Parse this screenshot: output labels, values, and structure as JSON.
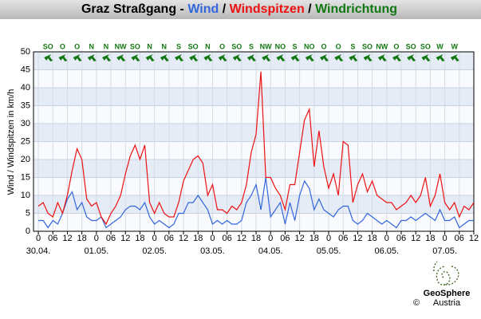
{
  "chart_data": {
    "type": "line",
    "title": "Graz Straßgang -",
    "separator": "/",
    "ylabel": "Wind / Windspitzen in km/h",
    "xlim": [
      -2,
      180
    ],
    "ylim": [
      0,
      50
    ],
    "yticks": [
      0,
      5,
      10,
      15,
      20,
      25,
      30,
      35,
      40,
      45,
      50
    ],
    "xticks": [
      0,
      {
        "value": 6,
        "label": "06"
      },
      12,
      18,
      {
        "value": 24,
        "label": "0"
      },
      {
        "value": 30,
        "label": "06"
      },
      {
        "value": 36,
        "label": "12"
      },
      {
        "value": 42,
        "label": "18"
      },
      {
        "value": 48,
        "label": "0"
      },
      {
        "value": 54,
        "label": "06"
      },
      {
        "value": 60,
        "label": "12"
      },
      {
        "value": 66,
        "label": "18"
      },
      {
        "value": 72,
        "label": "0"
      },
      {
        "value": 78,
        "label": "06"
      },
      {
        "value": 84,
        "label": "12"
      },
      {
        "value": 90,
        "label": "18"
      },
      {
        "value": 96,
        "label": "0"
      },
      {
        "value": 102,
        "label": "06"
      },
      {
        "value": 108,
        "label": "12"
      },
      {
        "value": 114,
        "label": "18"
      },
      {
        "value": 120,
        "label": "0"
      },
      {
        "value": 126,
        "label": "06"
      },
      {
        "value": 132,
        "label": "12"
      },
      {
        "value": 138,
        "label": "18"
      },
      {
        "value": 144,
        "label": "0"
      },
      {
        "value": 150,
        "label": "06"
      },
      {
        "value": 156,
        "label": "12"
      },
      {
        "value": 162,
        "label": "18"
      },
      {
        "value": 168,
        "label": "0"
      },
      {
        "value": 174,
        "label": "06"
      },
      {
        "value": 180,
        "label": "12"
      }
    ],
    "date_labels": [
      {
        "value": 0,
        "label": "30.04."
      },
      {
        "value": 24,
        "label": "01.05."
      },
      {
        "value": 48,
        "label": "02.05."
      },
      {
        "value": 72,
        "label": "03.05."
      },
      {
        "value": 96,
        "label": "04.05."
      },
      {
        "value": 120,
        "label": "05.05."
      },
      {
        "value": 144,
        "label": "06.05."
      },
      {
        "value": 168,
        "label": "07.05."
      }
    ],
    "grid": true,
    "x": [
      0,
      2,
      4,
      6,
      8,
      10,
      12,
      14,
      16,
      18,
      20,
      22,
      24,
      26,
      28,
      30,
      32,
      34,
      36,
      38,
      40,
      42,
      44,
      46,
      48,
      50,
      52,
      54,
      56,
      58,
      60,
      62,
      64,
      66,
      68,
      70,
      72,
      74,
      76,
      78,
      80,
      82,
      84,
      86,
      88,
      90,
      92,
      94,
      96,
      98,
      100,
      102,
      104,
      106,
      108,
      110,
      112,
      114,
      116,
      118,
      120,
      122,
      124,
      126,
      128,
      130,
      132,
      134,
      136,
      138,
      140,
      142,
      144,
      146,
      148,
      150,
      152,
      154,
      156,
      158,
      160,
      162,
      164,
      166,
      168,
      170,
      172,
      174,
      176,
      178,
      180
    ],
    "series": [
      {
        "name": "Wind",
        "color": "#3366dd",
        "values": [
          3,
          3,
          1,
          3,
          2,
          5,
          9,
          11,
          6,
          8,
          4,
          3,
          3,
          4,
          1,
          2,
          3,
          4,
          6,
          7,
          7,
          6,
          8,
          4,
          2,
          3,
          2,
          1,
          2,
          5,
          5,
          8,
          8,
          10,
          8,
          6,
          2,
          3,
          2,
          3,
          2,
          2,
          3,
          8,
          10,
          13,
          6,
          15,
          4,
          6,
          8,
          2,
          8,
          3,
          10,
          14,
          12,
          6,
          9,
          6,
          5,
          4,
          6,
          7,
          7,
          3,
          2,
          3,
          5,
          4,
          3,
          2,
          3,
          2,
          1,
          3,
          3,
          4,
          3,
          4,
          5,
          4,
          3,
          6,
          3,
          3,
          4,
          1,
          2,
          3,
          3
        ]
      },
      {
        "name": "Windspitzen",
        "color": "#ee1111",
        "values": [
          7,
          8,
          5,
          4,
          8,
          5,
          10,
          17,
          23,
          20,
          9,
          7,
          8,
          4,
          2,
          5,
          7,
          10,
          16,
          21,
          24,
          20,
          24,
          8,
          5,
          8,
          5,
          4,
          4,
          8,
          14,
          17,
          20,
          21,
          19,
          10,
          13,
          6,
          6,
          5,
          7,
          6,
          8,
          13,
          22,
          27,
          44.5,
          15,
          15,
          12,
          10,
          6,
          13,
          13,
          22,
          31,
          34,
          18,
          28,
          18,
          12,
          16,
          10,
          25,
          24,
          8,
          13,
          16,
          11,
          14,
          10,
          9,
          8,
          8,
          6,
          7,
          8,
          10,
          8,
          10,
          15,
          7,
          10,
          16,
          8,
          6,
          8,
          4,
          7,
          6,
          8
        ]
      }
    ],
    "wind_direction": {
      "name": "Windrichtung",
      "color": "#117711",
      "x": [
        4,
        10,
        16,
        22,
        28,
        34,
        40,
        46,
        52,
        58,
        64,
        70,
        76,
        82,
        88,
        94,
        100,
        106,
        112,
        118,
        124,
        130,
        136,
        142,
        148,
        154,
        160,
        166,
        172
      ],
      "labels": [
        "SO",
        "O",
        "O",
        "N",
        "N",
        "NW",
        "SO",
        "N",
        "N",
        "S",
        "SO",
        "N",
        "O",
        "SO",
        "S",
        "NW",
        "NO",
        "S",
        "NO",
        "O",
        "O",
        "S",
        "SO",
        "NW",
        "O",
        "SO",
        "SO",
        "W",
        "W"
      ]
    },
    "logo": {
      "name": "GeoSphere",
      "sub": "Austria"
    },
    "copyright": "©"
  }
}
